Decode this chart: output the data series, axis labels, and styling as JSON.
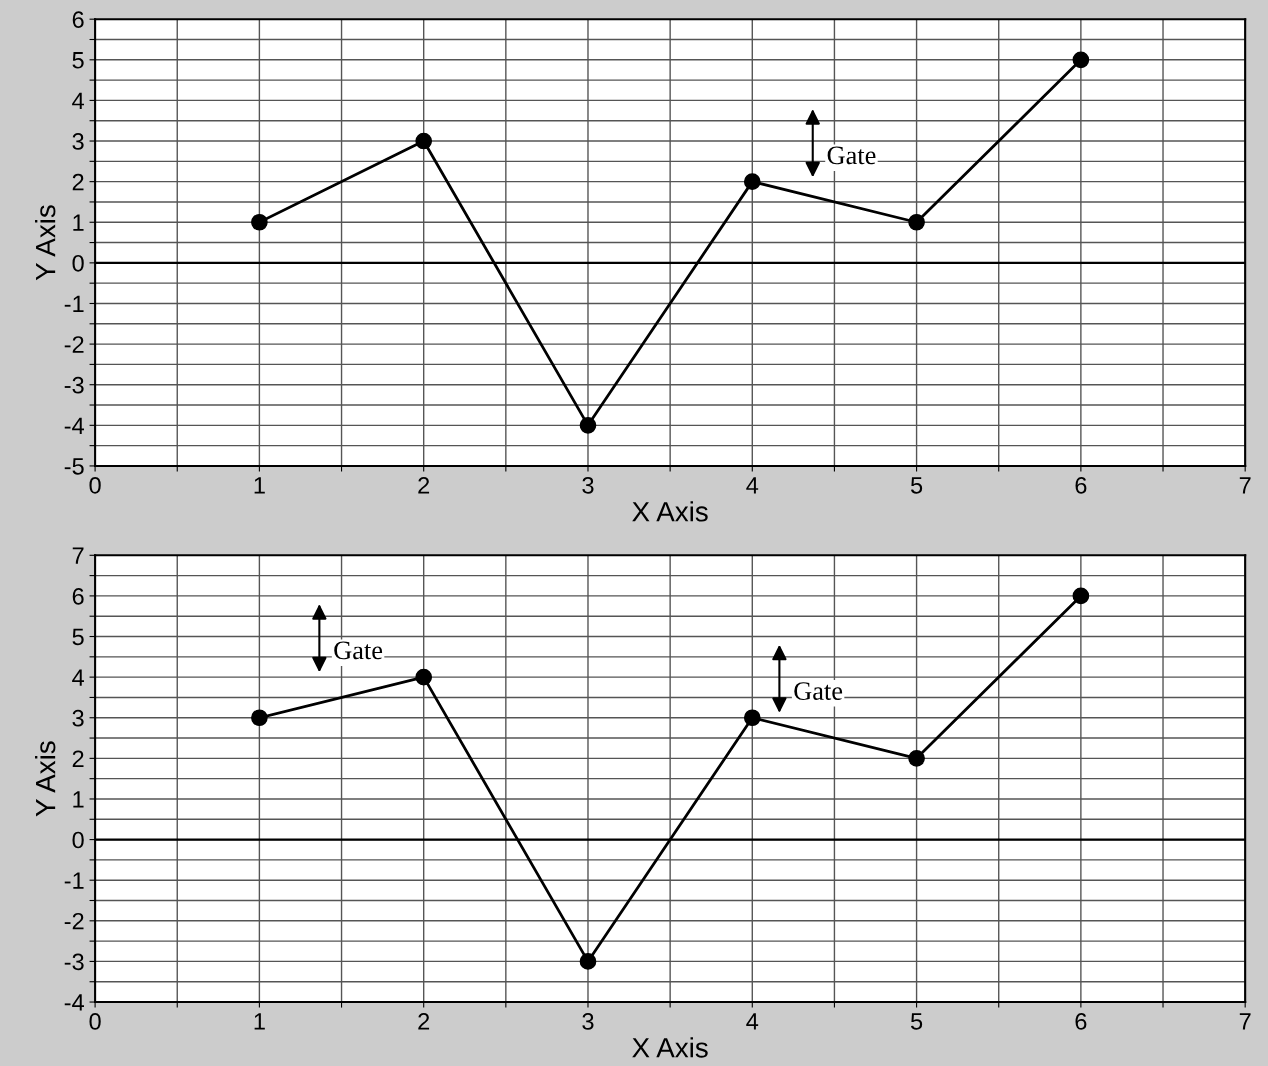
{
  "chart_data": [
    {
      "type": "line",
      "xlabel": "X Axis",
      "ylabel": "Y Axis",
      "x": [
        1,
        2,
        3,
        4,
        5,
        6
      ],
      "series": [
        {
          "color": "#000000",
          "values": [
            1,
            3,
            -4,
            2,
            1,
            5
          ]
        }
      ],
      "marker": "circle",
      "line_style": "solid",
      "grid": true,
      "xlim": [
        0,
        7
      ],
      "xticks": [
        0,
        {
          "value": 0.5,
          "label": null
        },
        1,
        {
          "value": 1.5,
          "label": null
        },
        2,
        {
          "value": 2.5,
          "label": null
        },
        3,
        {
          "value": 3.5,
          "label": null
        },
        4,
        {
          "value": 4.5,
          "label": null
        },
        5,
        {
          "value": 5.5,
          "label": null
        },
        6,
        {
          "value": 6.5,
          "label": null
        },
        7
      ],
      "ylim": [
        -5,
        6
      ],
      "yticks": [
        -5,
        {
          "value": -4.5,
          "label": null
        },
        -4,
        {
          "value": -3.5,
          "label": null
        },
        -3,
        {
          "value": -2.5,
          "label": null
        },
        -2,
        {
          "value": -1.5,
          "label": null
        },
        -1,
        {
          "value": -0.5,
          "label": null
        },
        0,
        {
          "value": 0.5,
          "label": null
        },
        1,
        {
          "value": 1.5,
          "label": null
        },
        2,
        {
          "value": 2.5,
          "label": null
        },
        3,
        {
          "value": 3.5,
          "label": null
        },
        4,
        {
          "value": 4.5,
          "label": null
        },
        5,
        {
          "value": 5.5,
          "label": null
        },
        6
      ],
      "ref_lines": [
        {
          "axis": "y",
          "value": 0,
          "color": "#000000"
        }
      ],
      "annotations": [
        "Gate"
      ]
    },
    {
      "type": "line",
      "xlabel": "X Axis",
      "ylabel": "Y Axis",
      "x": [
        1,
        2,
        3,
        4,
        5,
        6
      ],
      "series": [
        {
          "color": "#000000",
          "values": [
            3,
            4,
            -3,
            3,
            2,
            6
          ]
        }
      ],
      "marker": "circle",
      "line_style": "solid",
      "grid": true,
      "xlim": [
        0,
        7
      ],
      "xticks": [
        0,
        {
          "value": 0.5,
          "label": null
        },
        1,
        {
          "value": 1.5,
          "label": null
        },
        2,
        {
          "value": 2.5,
          "label": null
        },
        3,
        {
          "value": 3.5,
          "label": null
        },
        4,
        {
          "value": 4.5,
          "label": null
        },
        5,
        {
          "value": 5.5,
          "label": null
        },
        6,
        {
          "value": 6.5,
          "label": null
        },
        7
      ],
      "ylim": [
        -4,
        7
      ],
      "yticks": [
        -4,
        {
          "value": -3.5,
          "label": null
        },
        -3,
        {
          "value": -2.5,
          "label": null
        },
        -2,
        {
          "value": -1.5,
          "label": null
        },
        -1,
        {
          "value": -0.5,
          "label": null
        },
        0,
        {
          "value": 0.5,
          "label": null
        },
        1,
        {
          "value": 1.5,
          "label": null
        },
        2,
        {
          "value": 2.5,
          "label": null
        },
        3,
        {
          "value": 3.5,
          "label": null
        },
        4,
        {
          "value": 4.5,
          "label": null
        },
        5,
        {
          "value": 5.5,
          "label": null
        },
        6,
        {
          "value": 6.5,
          "label": null
        },
        7
      ],
      "ref_lines": [
        {
          "axis": "y",
          "value": 0,
          "color": "#000000"
        }
      ],
      "annotations": [
        "Gate",
        "Gate"
      ]
    }
  ]
}
